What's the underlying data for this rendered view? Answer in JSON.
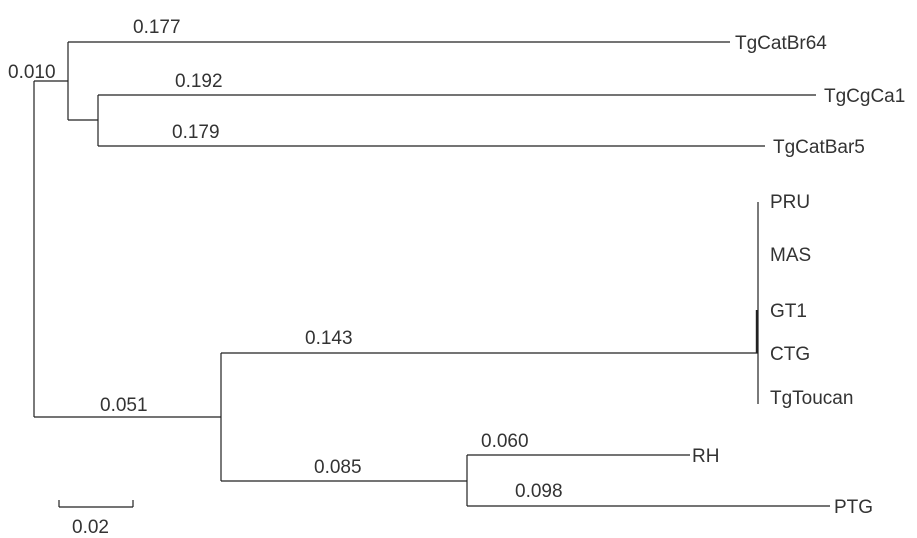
{
  "tree": {
    "branch_lengths": {
      "catbr64": "0.177",
      "cat_clade": "0.010",
      "cgca1": "0.192",
      "catbar5": "0.179",
      "clonal": "0.143",
      "lower_clade": "0.051",
      "rh": "0.060",
      "rh_ptg": "0.085",
      "ptg": "0.098"
    },
    "taxa": {
      "catbr64": "TgCatBr64",
      "cgca1": "TgCgCa1",
      "catbar5": "TgCatBar5",
      "pru": "PRU",
      "mas": "MAS",
      "gt1": "GT1",
      "ctg": "CTG",
      "toucan": "TgToucan",
      "rh": "RH",
      "ptg": "PTG"
    },
    "scale_bar": {
      "label": "0.02"
    }
  }
}
